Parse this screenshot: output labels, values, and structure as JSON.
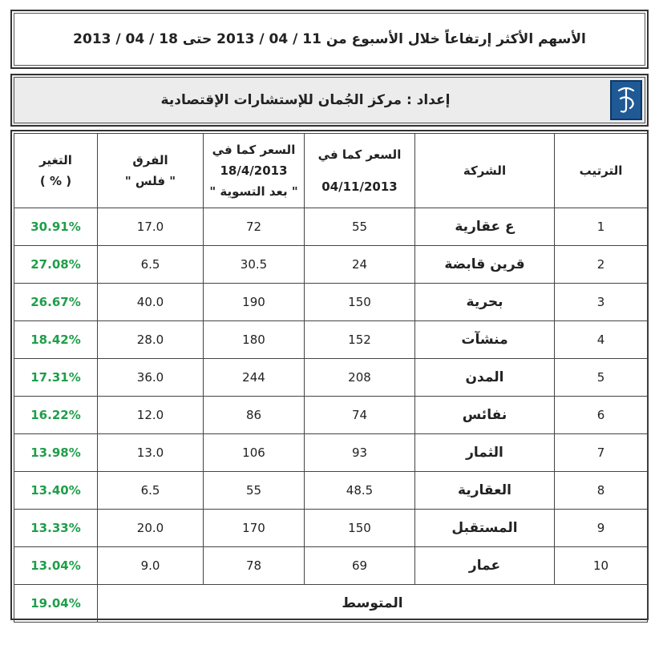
{
  "title": "الأسهم الأكثر إرتفاعاً خلال الأسبوع من 11 / 04 / 2013 حتى 18 / 04 / 2013",
  "prepared_by": "إعداد : مركز الجُمان للإستشارات الإقتصادية",
  "logo_icon": "jumaan-logo-icon",
  "colors": {
    "accent_green": "#1f9e4a",
    "logo_blue": "#1f5a96",
    "header_bg": "#ececec"
  },
  "headers": {
    "change_line1": "التغير",
    "change_line2": "( % )",
    "diff_line1": "الفرق",
    "diff_line2": "\" فلس \"",
    "price_after_line1": "السعر كما في",
    "price_after_line2": "18/4/2013",
    "price_after_line3": "\" بعد التسوية \"",
    "price_before_line1": "السعر كما في",
    "price_before_line2": "04/11/2013",
    "company": "الشركة",
    "rank": "الترتيب"
  },
  "rows": [
    {
      "rank": "1",
      "company": "ع عقارية",
      "price_before": "55",
      "price_after": "72",
      "diff": "17.0",
      "change": "30.91%"
    },
    {
      "rank": "2",
      "company": "قرين قابضة",
      "price_before": "24",
      "price_after": "30.5",
      "diff": "6.5",
      "change": "27.08%"
    },
    {
      "rank": "3",
      "company": "بحرية",
      "price_before": "150",
      "price_after": "190",
      "diff": "40.0",
      "change": "26.67%"
    },
    {
      "rank": "4",
      "company": "منشآت",
      "price_before": "152",
      "price_after": "180",
      "diff": "28.0",
      "change": "18.42%"
    },
    {
      "rank": "5",
      "company": "المدن",
      "price_before": "208",
      "price_after": "244",
      "diff": "36.0",
      "change": "17.31%"
    },
    {
      "rank": "6",
      "company": "نفائس",
      "price_before": "74",
      "price_after": "86",
      "diff": "12.0",
      "change": "16.22%"
    },
    {
      "rank": "7",
      "company": "الثمار",
      "price_before": "93",
      "price_after": "106",
      "diff": "13.0",
      "change": "13.98%"
    },
    {
      "rank": "8",
      "company": "العقارية",
      "price_before": "48.5",
      "price_after": "55",
      "diff": "6.5",
      "change": "13.40%"
    },
    {
      "rank": "9",
      "company": "المستقبل",
      "price_before": "150",
      "price_after": "170",
      "diff": "20.0",
      "change": "13.33%"
    },
    {
      "rank": "10",
      "company": "عمار",
      "price_before": "69",
      "price_after": "78",
      "diff": "9.0",
      "change": "13.04%"
    }
  ],
  "average": {
    "label": "المتوسط",
    "change": "19.04%"
  }
}
